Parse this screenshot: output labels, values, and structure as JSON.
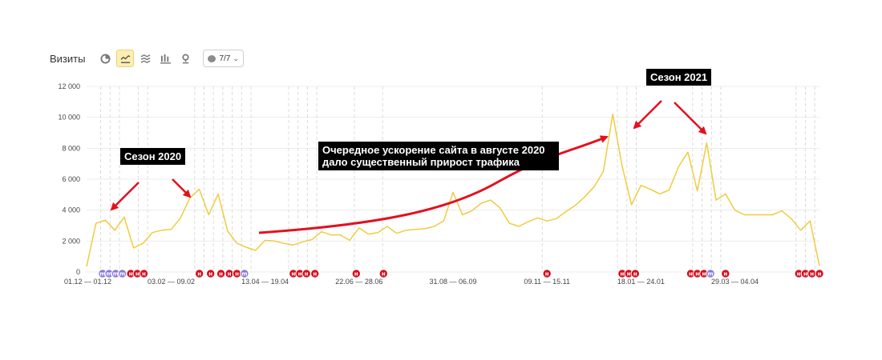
{
  "toolbar": {
    "title": "Визиты",
    "notes_label": "7/7",
    "icons": [
      "pie-icon",
      "line-chart-icon",
      "area-chart-icon",
      "bar-chart-icon",
      "map-pin-icon"
    ],
    "active_icon": "line-chart-icon"
  },
  "annotations": {
    "season_2020": "Сезон 2020",
    "season_2021": "Сезон 2021",
    "acceleration": "Очередное ускорение сайта в августе 2020 дало существенный прирост трафика"
  },
  "colors": {
    "line": "#f0cb40",
    "arrow": "#e3101e",
    "note_red": "#d50f1d",
    "note_purple": "#8b7ad8",
    "grid": "#eaeaea"
  },
  "chart_data": {
    "type": "line",
    "title": "Визиты",
    "ylim": [
      0,
      12000
    ],
    "yticks": [
      "0",
      "2 000",
      "4 000",
      "6 000",
      "8 000",
      "10 000",
      "12 000"
    ],
    "xtick_labels": [
      {
        "label": "01.12 — 01.12",
        "week": 0
      },
      {
        "label": "03.02 — 09.02",
        "week": 9
      },
      {
        "label": "13.04 — 19.04",
        "week": 19
      },
      {
        "label": "22.06 — 28.06",
        "week": 29
      },
      {
        "label": "31.08 — 06.09",
        "week": 39
      },
      {
        "label": "09.11 — 15.11",
        "week": 49
      },
      {
        "label": "18.01 — 24.01",
        "week": 59
      },
      {
        "label": "29.03 — 04.04",
        "week": 69
      }
    ],
    "series": [
      {
        "values": [
          350,
          3150,
          3350,
          2700,
          3550,
          1550,
          1850,
          2550,
          2700,
          2750,
          3500,
          4800,
          5350,
          3700,
          5050,
          2650,
          1850,
          1600,
          1400,
          2050,
          2000,
          1850,
          1750,
          1950,
          2100,
          2600,
          2400,
          2400,
          2050,
          2850,
          2450,
          2550,
          2950,
          2500,
          2700,
          2750,
          2800,
          2950,
          3300,
          5150,
          3700,
          3950,
          4450,
          4650,
          4150,
          3150,
          2950,
          3250,
          3500,
          3300,
          3450,
          3900,
          4300,
          4850,
          5500,
          6500,
          10200,
          6850,
          4350,
          5600,
          5350,
          5050,
          5300,
          6800,
          7750,
          5250,
          8350,
          4650,
          5050,
          4000,
          3700,
          3700,
          3700,
          3700,
          3950,
          3450,
          2700,
          3300,
          400
        ]
      }
    ],
    "note_markers": [
      {
        "week": 1.7,
        "icon": "m",
        "color": "purple"
      },
      {
        "week": 2.4,
        "icon": "m",
        "color": "purple"
      },
      {
        "week": 3.1,
        "icon": "m",
        "color": "purple"
      },
      {
        "week": 3.8,
        "icon": "m",
        "color": "purple"
      },
      {
        "week": 4.7,
        "icon": "н",
        "color": "red"
      },
      {
        "week": 5.4,
        "icon": "н",
        "color": "red"
      },
      {
        "week": 6.1,
        "icon": "н",
        "color": "red"
      },
      {
        "week": 12.0,
        "icon": "н",
        "color": "red"
      },
      {
        "week": 13.2,
        "icon": "н",
        "color": "red"
      },
      {
        "week": 14.3,
        "icon": "н",
        "color": "red"
      },
      {
        "week": 15.2,
        "icon": "н",
        "color": "red"
      },
      {
        "week": 16.0,
        "icon": "н",
        "color": "red"
      },
      {
        "week": 16.8,
        "icon": "m",
        "color": "purple"
      },
      {
        "week": 22.0,
        "icon": "н",
        "color": "red"
      },
      {
        "week": 22.7,
        "icon": "н",
        "color": "red"
      },
      {
        "week": 23.4,
        "icon": "н",
        "color": "red"
      },
      {
        "week": 24.3,
        "icon": "н",
        "color": "red"
      },
      {
        "week": 28.7,
        "icon": "н",
        "color": "red"
      },
      {
        "week": 31.6,
        "icon": "н",
        "color": "red"
      },
      {
        "week": 49.0,
        "icon": "н",
        "color": "red"
      },
      {
        "week": 57.0,
        "icon": "н",
        "color": "red"
      },
      {
        "week": 57.7,
        "icon": "н",
        "color": "red"
      },
      {
        "week": 58.4,
        "icon": "н",
        "color": "red"
      },
      {
        "week": 64.3,
        "icon": "н",
        "color": "red"
      },
      {
        "week": 65.0,
        "icon": "н",
        "color": "red"
      },
      {
        "week": 65.7,
        "icon": "н",
        "color": "red"
      },
      {
        "week": 66.4,
        "icon": "m",
        "color": "purple"
      },
      {
        "week": 68.0,
        "icon": "н",
        "color": "red"
      },
      {
        "week": 75.8,
        "icon": "н",
        "color": "red"
      },
      {
        "week": 76.5,
        "icon": "н",
        "color": "red"
      },
      {
        "week": 77.2,
        "icon": "н",
        "color": "red"
      },
      {
        "week": 78.0,
        "icon": "н",
        "color": "red"
      }
    ],
    "week_guides": [
      1.5,
      2.5,
      3.5,
      5.5,
      6.5,
      11.5,
      12.5,
      13.5,
      14.5,
      15.5,
      16.5,
      17.5,
      21.5,
      22.5,
      23.5,
      24.5,
      28.5,
      31.5,
      48.5,
      56.5,
      57.5,
      58.5,
      64.5,
      65.5,
      66.5,
      67.5,
      75.5,
      76.5,
      77.5
    ]
  }
}
